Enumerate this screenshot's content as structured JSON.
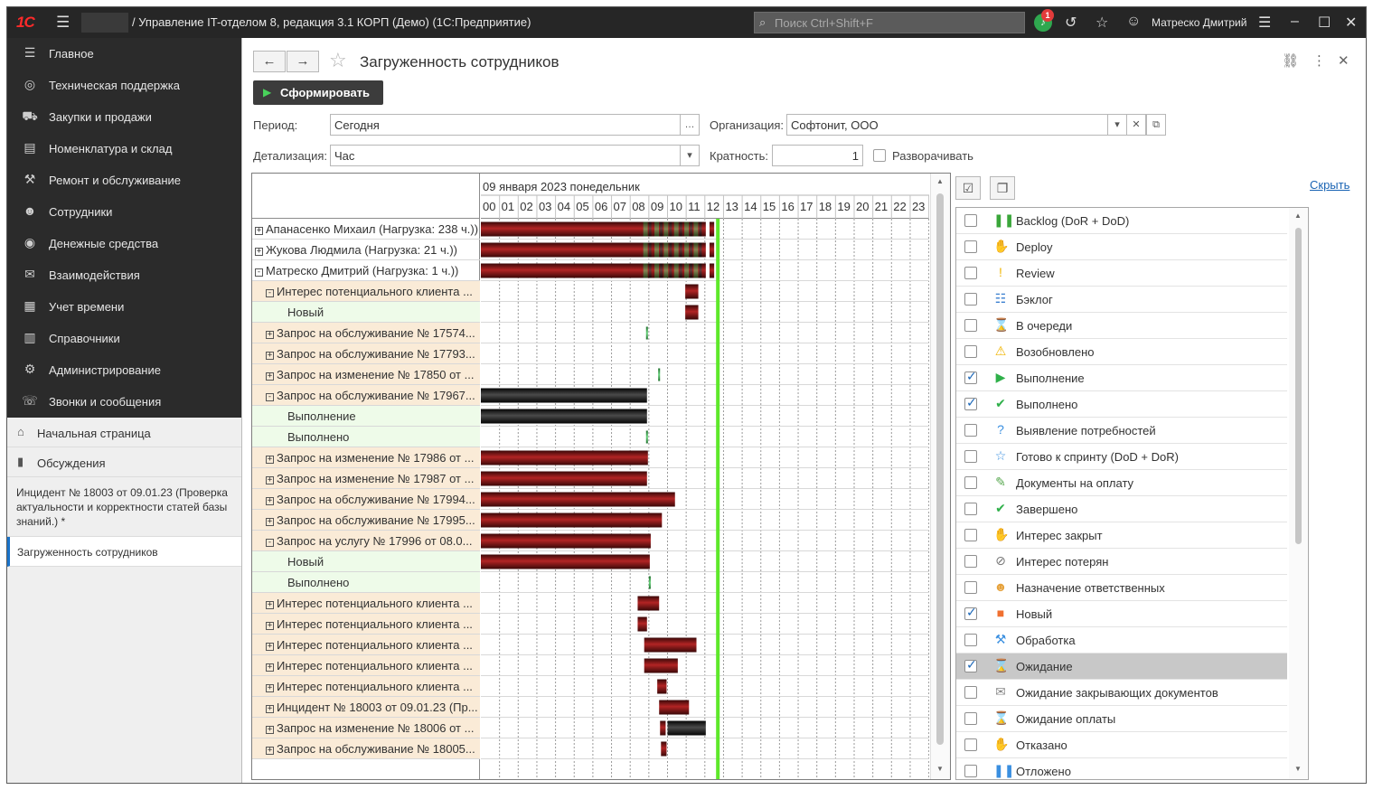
{
  "titlebar": {
    "logo": "1С",
    "title": "/ Управление IT-отделом 8, редакция 3.1 КОРП (Демо)  (1С:Предприятие)",
    "search_placeholder": "Поиск Ctrl+Shift+F",
    "notifications_count": "1",
    "user": "Матреско Дмитрий"
  },
  "sidebar": {
    "items": [
      {
        "label": "Главное",
        "icon": "menu-icon"
      },
      {
        "label": "Техническая поддержка",
        "icon": "lifebuoy-icon"
      },
      {
        "label": "Закупки и продажи",
        "icon": "cart-icon"
      },
      {
        "label": "Номенклатура и склад",
        "icon": "warehouse-icon"
      },
      {
        "label": "Ремонт и обслуживание",
        "icon": "wrench-icon"
      },
      {
        "label": "Сотрудники",
        "icon": "people-icon"
      },
      {
        "label": "Денежные средства",
        "icon": "money-icon"
      },
      {
        "label": "Взаимодействия",
        "icon": "envelope-icon"
      },
      {
        "label": "Учет времени",
        "icon": "calendar-icon"
      },
      {
        "label": "Справочники",
        "icon": "book-icon"
      },
      {
        "label": "Администрирование",
        "icon": "gear-icon"
      },
      {
        "label": "Звонки и сообщения",
        "icon": "phone-icon"
      }
    ],
    "home": "Начальная страница",
    "discussions": "Обсуждения",
    "open_doc": "Инцидент № 18003 от 09.01.23 (Проверка актуальности и корректности статей базы знаний.) *",
    "active_doc": "Загруженность сотрудников"
  },
  "header": {
    "title": "Загруженность сотрудников",
    "generate_label": "Сформировать"
  },
  "form": {
    "period_label": "Период:",
    "period_value": "Сегодня",
    "org_label": "Организация:",
    "org_value": "Софтонит, ООО",
    "detail_label": "Детализация:",
    "detail_value": "Час",
    "mult_label": "Кратность:",
    "mult_value": "1",
    "expand_label": "Разворачивать"
  },
  "gantt": {
    "date": "09 января 2023 понедельник",
    "hours": [
      "00",
      "01",
      "02",
      "03",
      "04",
      "05",
      "06",
      "07",
      "08",
      "09",
      "10",
      "11",
      "12",
      "13",
      "14",
      "15",
      "16",
      "17",
      "18",
      "19",
      "20",
      "21",
      "22",
      "23"
    ],
    "now_hour": 12.6,
    "rows": [
      {
        "label": "Апанасенко Михаил (Нагрузка: 238 ч.))",
        "level": 0,
        "exp": "+",
        "bars": [
          {
            "s": 0,
            "e": 12.05,
            "c": "mixed"
          },
          {
            "s": 12.25,
            "e": 12.5,
            "c": "red"
          }
        ]
      },
      {
        "label": "Жукова Людмила (Нагрузка: 21 ч.))",
        "level": 0,
        "exp": "+",
        "bars": [
          {
            "s": 0,
            "e": 12.05,
            "c": "mixed"
          },
          {
            "s": 12.25,
            "e": 12.5,
            "c": "red"
          }
        ]
      },
      {
        "label": "Матреско Дмитрий (Нагрузка: 1 ч.))",
        "level": 0,
        "exp": "-",
        "bars": [
          {
            "s": 0,
            "e": 12.05,
            "c": "mixed"
          },
          {
            "s": 12.25,
            "e": 12.5,
            "c": "red"
          }
        ]
      },
      {
        "label": "Интерес потенциального клиента ...",
        "level": 1,
        "exp": "-",
        "bars": [
          {
            "s": 10.95,
            "e": 11.65,
            "c": "red"
          }
        ]
      },
      {
        "label": "Новый",
        "level": 2,
        "exp": "",
        "bars": [
          {
            "s": 10.95,
            "e": 11.65,
            "c": "red"
          }
        ]
      },
      {
        "label": "Запрос на обслуживание № 17574...",
        "level": 1,
        "exp": "+",
        "bars": [
          {
            "s": 8.85,
            "e": 8.95,
            "c": "green"
          }
        ]
      },
      {
        "label": "Запрос на обслуживание № 17793...",
        "level": 1,
        "exp": "+",
        "bars": []
      },
      {
        "label": "Запрос на изменение № 17850 от ...",
        "level": 1,
        "exp": "+",
        "bars": [
          {
            "s": 9.5,
            "e": 9.6,
            "c": "green"
          }
        ]
      },
      {
        "label": "Запрос на обслуживание № 17967...",
        "level": 1,
        "exp": "-",
        "bars": [
          {
            "s": 0,
            "e": 8.9,
            "c": "black"
          }
        ]
      },
      {
        "label": "Выполнение",
        "level": 2,
        "exp": "",
        "bars": [
          {
            "s": 0,
            "e": 8.9,
            "c": "black"
          }
        ]
      },
      {
        "label": "Выполнено",
        "level": 2,
        "exp": "",
        "bars": [
          {
            "s": 8.85,
            "e": 8.95,
            "c": "green"
          }
        ]
      },
      {
        "label": "Запрос на изменение № 17986 от ...",
        "level": 1,
        "exp": "+",
        "bars": [
          {
            "s": 0,
            "e": 8.95,
            "c": "red"
          }
        ]
      },
      {
        "label": "Запрос на изменение № 17987 от ...",
        "level": 1,
        "exp": "+",
        "bars": [
          {
            "s": 0,
            "e": 8.9,
            "c": "red"
          }
        ]
      },
      {
        "label": "Запрос на обслуживание № 17994...",
        "level": 1,
        "exp": "+",
        "bars": [
          {
            "s": 0,
            "e": 10.4,
            "c": "red"
          }
        ]
      },
      {
        "label": "Запрос на обслуживание № 17995...",
        "level": 1,
        "exp": "+",
        "bars": [
          {
            "s": 0,
            "e": 9.7,
            "c": "red"
          }
        ]
      },
      {
        "label": "Запрос на услугу № 17996 от 08.0...",
        "level": 1,
        "exp": "-",
        "bars": [
          {
            "s": 0,
            "e": 9.1,
            "c": "red"
          }
        ]
      },
      {
        "label": "Новый",
        "level": 2,
        "exp": "",
        "bars": [
          {
            "s": 0,
            "e": 9.05,
            "c": "red"
          }
        ]
      },
      {
        "label": "Выполнено",
        "level": 2,
        "exp": "",
        "bars": [
          {
            "s": 9.0,
            "e": 9.1,
            "c": "green"
          }
        ]
      },
      {
        "label": "Интерес потенциального клиента ...",
        "level": 1,
        "exp": "+",
        "bars": [
          {
            "s": 8.4,
            "e": 9.55,
            "c": "red"
          }
        ]
      },
      {
        "label": "Интерес потенциального клиента ...",
        "level": 1,
        "exp": "+",
        "bars": [
          {
            "s": 8.4,
            "e": 8.9,
            "c": "red"
          }
        ]
      },
      {
        "label": "Интерес потенциального клиента ...",
        "level": 1,
        "exp": "+",
        "bars": [
          {
            "s": 8.75,
            "e": 11.55,
            "c": "red"
          }
        ]
      },
      {
        "label": "Интерес потенциального клиента ...",
        "level": 1,
        "exp": "+",
        "bars": [
          {
            "s": 8.75,
            "e": 10.55,
            "c": "red"
          }
        ]
      },
      {
        "label": "Интерес потенциального клиента ...",
        "level": 1,
        "exp": "+",
        "bars": [
          {
            "s": 9.45,
            "e": 9.95,
            "c": "red"
          }
        ]
      },
      {
        "label": "Инцидент № 18003 от 09.01.23 (Пр...",
        "level": 1,
        "exp": "+",
        "bars": [
          {
            "s": 9.55,
            "e": 11.15,
            "c": "red"
          }
        ]
      },
      {
        "label": "Запрос на изменение № 18006 от ...",
        "level": 1,
        "exp": "+",
        "bars": [
          {
            "s": 9.6,
            "e": 9.9,
            "c": "red"
          },
          {
            "s": 10.0,
            "e": 12.05,
            "c": "black"
          }
        ]
      },
      {
        "label": "Запрос на обслуживание № 18005...",
        "level": 1,
        "exp": "+",
        "bars": [
          {
            "s": 9.65,
            "e": 9.95,
            "c": "red"
          }
        ]
      }
    ]
  },
  "statuses": {
    "hide_link": "Скрыть",
    "items": [
      {
        "label": "Backlog (DoR + DoD)",
        "checked": false,
        "icon": "pause-icon",
        "color": "#3aa63a"
      },
      {
        "label": "Deploy",
        "checked": false,
        "icon": "thumbs-up-icon",
        "color": "#e6a23c"
      },
      {
        "label": "Review",
        "checked": false,
        "icon": "exclamation-icon",
        "color": "#f0b400"
      },
      {
        "label": "Бэклог",
        "checked": false,
        "icon": "list-icon",
        "color": "#3a7fd0"
      },
      {
        "label": "В очереди",
        "checked": false,
        "icon": "hourglass-icon",
        "color": "#3a7fd0"
      },
      {
        "label": "Возобновлено",
        "checked": false,
        "icon": "warning-icon",
        "color": "#f0b400"
      },
      {
        "label": "Выполнение",
        "checked": true,
        "icon": "play-icon",
        "color": "#2fb04a"
      },
      {
        "label": "Выполнено",
        "checked": true,
        "icon": "check-icon",
        "color": "#2fb04a"
      },
      {
        "label": "Выявление потребностей",
        "checked": false,
        "icon": "question-icon",
        "color": "#3a8fe0"
      },
      {
        "label": "Готово к спринту (DoD + DoR)",
        "checked": false,
        "icon": "star-icon",
        "color": "#3a8fe0"
      },
      {
        "label": "Документы на оплату",
        "checked": false,
        "icon": "edit-doc-icon",
        "color": "#58a850"
      },
      {
        "label": "Завершено",
        "checked": false,
        "icon": "check-circle-icon",
        "color": "#2fb04a"
      },
      {
        "label": "Интерес закрыт",
        "checked": false,
        "icon": "thumbs-up-icon",
        "color": "#e6a23c"
      },
      {
        "label": "Интерес потерян",
        "checked": false,
        "icon": "blocked-icon",
        "color": "#777777"
      },
      {
        "label": "Назначение ответственных",
        "checked": false,
        "icon": "user-icon",
        "color": "#e6a23c"
      },
      {
        "label": "Новый",
        "checked": true,
        "icon": "new-badge-icon",
        "color": "#f07030"
      },
      {
        "label": "Обработка",
        "checked": false,
        "icon": "wrench-icon",
        "color": "#3a8fe0"
      },
      {
        "label": "Ожидание",
        "checked": true,
        "icon": "hourglass-icon",
        "color": "#e6a23c",
        "selected": true
      },
      {
        "label": "Ожидание закрывающих документов",
        "checked": false,
        "icon": "envelope-icon",
        "color": "#888888"
      },
      {
        "label": "Ожидание оплаты",
        "checked": false,
        "icon": "hourglass-icon",
        "color": "#3a7fd0"
      },
      {
        "label": "Отказано",
        "checked": false,
        "icon": "thumbs-down-icon",
        "color": "#e6a23c"
      },
      {
        "label": "Отложено",
        "checked": false,
        "icon": "pause-icon",
        "color": "#3a8fe0"
      }
    ]
  }
}
